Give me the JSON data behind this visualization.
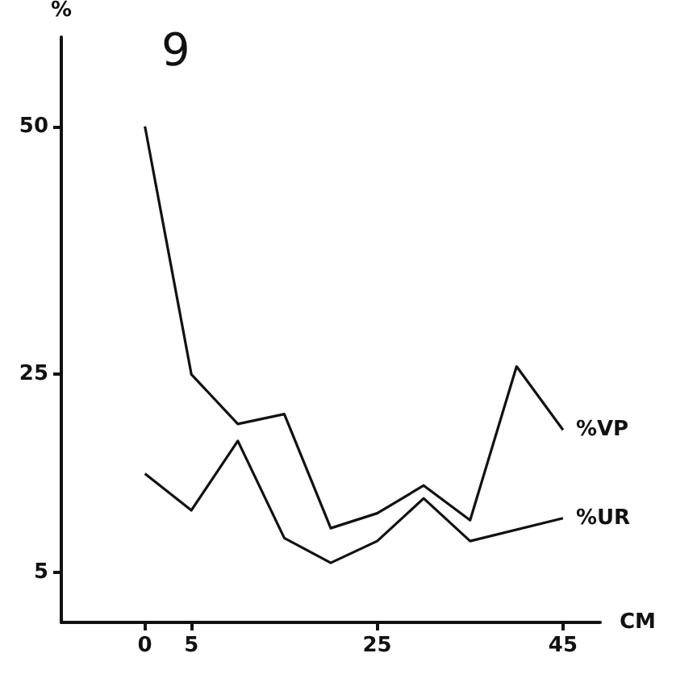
{
  "chart_data": {
    "type": "line",
    "title": "9",
    "xlabel": "CM",
    "ylabel": "%",
    "series": [
      {
        "name": "%VP",
        "color": "#111111",
        "x": [
          0,
          5,
          10,
          15,
          20,
          25,
          30,
          35,
          40,
          45
        ],
        "values": [
          50,
          25,
          20,
          21,
          9.5,
          11,
          13.8,
          10.3,
          25.8,
          19.4
        ]
      },
      {
        "name": "%UR",
        "color": "#111111",
        "x": [
          0,
          5,
          10,
          15,
          20,
          25,
          30,
          35,
          45
        ],
        "values": [
          15,
          11.3,
          18.3,
          8.5,
          6,
          8.2,
          12.5,
          8.2,
          10.5
        ]
      }
    ],
    "xlim": [
      -9,
      49
    ],
    "xticks": [
      0,
      5,
      25,
      45
    ],
    "ylim": [
      0,
      59
    ],
    "yticks": [
      5,
      25,
      50
    ],
    "grid": false,
    "legend": false,
    "marker": "none",
    "line_style": "solid"
  }
}
